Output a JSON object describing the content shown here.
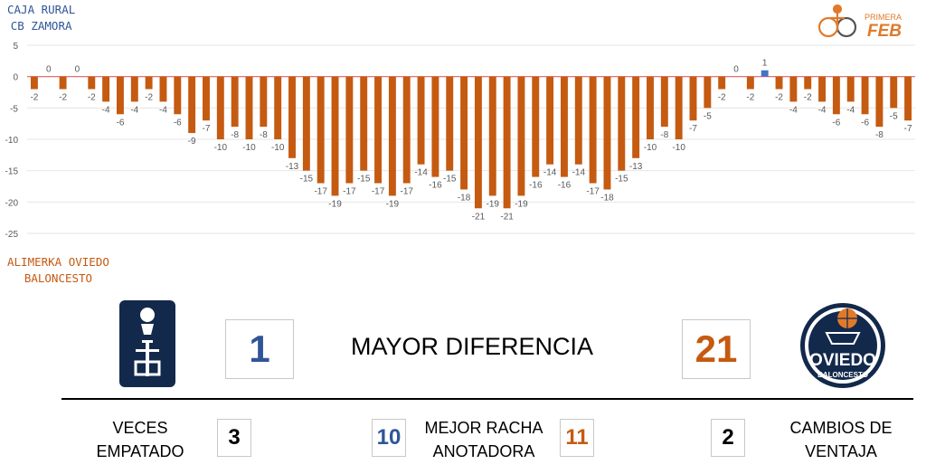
{
  "teams": {
    "top": {
      "line1": "CAJA RURAL",
      "line2": "CB ZAMORA",
      "color": "#2f5597"
    },
    "bottom": {
      "line1": "ALIMERKA OVIEDO",
      "line2": "BALONCESTO",
      "color": "#c55a11"
    }
  },
  "league_logo": {
    "text1": "PRIMERA",
    "text2": "FEB",
    "icon": "basketball-player-icon"
  },
  "home_logo": {
    "icon": "zamora-club-crest-icon"
  },
  "away_logo": {
    "line1": "OVIEDO",
    "line2": "BALONCESTO",
    "icon": "oviedo-basketball-crest-icon"
  },
  "chart_data": {
    "type": "bar",
    "ylim": [
      -25,
      5
    ],
    "yticks": [
      5,
      0,
      -5,
      -10,
      -15,
      -20,
      -25
    ],
    "grid": true,
    "values": [
      -2,
      0,
      -2,
      0,
      -2,
      -4,
      -6,
      -4,
      -2,
      -4,
      -6,
      -9,
      -7,
      -10,
      -8,
      -10,
      -8,
      -10,
      -13,
      -15,
      -17,
      -19,
      -17,
      -15,
      -17,
      -19,
      -17,
      -14,
      -16,
      -15,
      -18,
      -21,
      -19,
      -21,
      -19,
      -16,
      -14,
      -16,
      -14,
      -17,
      -18,
      -15,
      -13,
      -10,
      -8,
      -10,
      -7,
      -5,
      -2,
      0,
      -2,
      1,
      -2,
      -4,
      -2,
      -4,
      -6,
      -4,
      -6,
      -8,
      -5,
      -7
    ],
    "colors": {
      "negative": "#c55a11",
      "positive": "#4472c4",
      "label": "#595959"
    }
  },
  "stats": {
    "mayor_diferencia": {
      "label": "MAYOR DIFERENCIA",
      "home": "1",
      "away": "21"
    },
    "veces_empatado": {
      "label1": "VECES",
      "label2": "EMPATADO",
      "value": "3"
    },
    "mejor_racha": {
      "label1": "MEJOR RACHA",
      "label2": "ANOTADORA",
      "home": "10",
      "away": "11"
    },
    "cambios_ventaja": {
      "label1": "CAMBIOS DE",
      "label2": "VENTAJA",
      "value": "2"
    }
  }
}
